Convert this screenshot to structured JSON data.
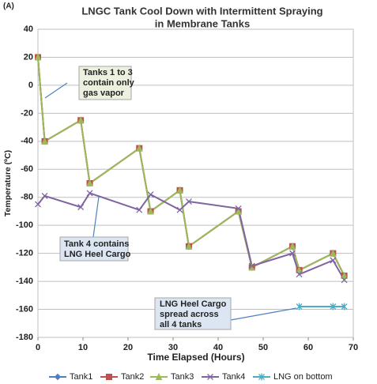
{
  "chart_data": {
    "type": "line",
    "panel_label": "(A)",
    "title": [
      "LNGC Tank Cool Down with Intermittent Spraying",
      "in Membrane Tanks"
    ],
    "x_label": "Time Elapsed (Hours)",
    "y_label": "Temperature (ºC)",
    "x": [
      0,
      1.5,
      9.5,
      11.5,
      22.5,
      25,
      31.5,
      33.5,
      44.5,
      47.5,
      56.5,
      58,
      65.5,
      68
    ],
    "series": [
      {
        "name": "Tank1",
        "color": "#4f81bd",
        "marker": "diamond",
        "values": [
          20,
          -40,
          -25,
          -70,
          -45,
          -90,
          -75,
          -115,
          -90,
          -130,
          -115,
          -132,
          -120,
          -136
        ]
      },
      {
        "name": "Tank2",
        "color": "#c0504d",
        "marker": "square",
        "values": [
          20,
          -40,
          -25,
          -70,
          -45,
          -90,
          -75,
          -115,
          -90,
          -130,
          -115,
          -132,
          -120,
          -136
        ]
      },
      {
        "name": "Tank3",
        "color": "#9bbb59",
        "marker": "triangle",
        "values": [
          20,
          -40,
          -25,
          -70,
          -45,
          -90,
          -75,
          -115,
          -90,
          -130,
          -115,
          -132,
          -120,
          -136
        ]
      },
      {
        "name": "Tank4",
        "color": "#8064a2",
        "marker": "x",
        "values": [
          -85,
          -79,
          -87,
          -77,
          -89,
          -78,
          -89,
          -83,
          -88,
          -129,
          -120,
          -135,
          -125,
          -139
        ]
      },
      {
        "name": "LNG on bottom",
        "color": "#4bacc6",
        "marker": "star",
        "values": [
          null,
          null,
          null,
          null,
          null,
          null,
          null,
          null,
          null,
          null,
          null,
          -158,
          -158,
          -158
        ]
      }
    ],
    "xlim": [
      0,
      70
    ],
    "xticks": [
      0,
      10,
      20,
      30,
      40,
      50,
      60,
      70
    ],
    "ylim": [
      -180,
      40
    ],
    "yticks": [
      -180,
      -160,
      -140,
      -120,
      -100,
      -80,
      -60,
      -40,
      -20,
      0,
      20,
      40
    ],
    "grid": true,
    "legend": "bottom",
    "annotations": [
      [
        "Tanks 1 to 3",
        "contain only",
        "gas vapor"
      ],
      [
        "Tank 4 contains",
        "LNG Heel Cargo"
      ],
      [
        "LNG Heel Cargo",
        "spread across",
        "all 4 tanks"
      ]
    ]
  }
}
